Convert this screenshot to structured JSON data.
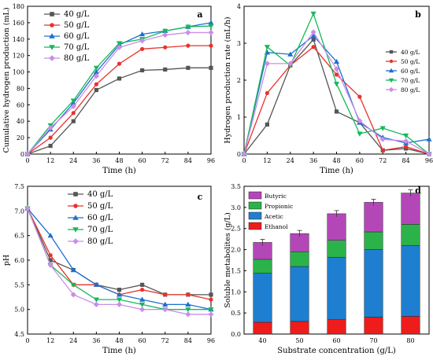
{
  "colors": {
    "c40": "#555555",
    "c50": "#e8332a",
    "c60": "#1f6fd1",
    "c70": "#16b85a",
    "c80": "#c98ee8",
    "butyric": "#b447b8",
    "propionic": "#2bb34a",
    "acetic": "#1e7fd0",
    "ethanol": "#ef1c1c"
  },
  "chart_data": [
    {
      "panel": "a",
      "type": "line",
      "xlabel": "Time (h)",
      "ylabel": "Cumulative hydrogen production (mL)",
      "xlim": [
        0,
        96
      ],
      "ylim": [
        0,
        180
      ],
      "xticks": [
        0,
        12,
        24,
        36,
        48,
        60,
        72,
        84,
        96
      ],
      "yticks": [
        0,
        20,
        40,
        60,
        80,
        100,
        120,
        140,
        160,
        180
      ],
      "x": [
        0,
        12,
        24,
        36,
        48,
        60,
        72,
        84,
        96
      ],
      "legend_position": "top-left",
      "series": [
        {
          "name": "40 g/L",
          "marker": "square",
          "color_key": "c40",
          "values": [
            0,
            10,
            40,
            78,
            92,
            102,
            103,
            105,
            105
          ]
        },
        {
          "name": "50 g/L",
          "marker": "circle",
          "color_key": "c50",
          "values": [
            0,
            20,
            50,
            85,
            110,
            128,
            130,
            132,
            132
          ]
        },
        {
          "name": "60 g/L",
          "marker": "triangle-up",
          "color_key": "c60",
          "values": [
            0,
            30,
            62,
            100,
            133,
            146,
            150,
            155,
            160
          ]
        },
        {
          "name": "70 g/L",
          "marker": "triangle-down",
          "color_key": "c70",
          "values": [
            0,
            35,
            65,
            105,
            135,
            140,
            150,
            155,
            156
          ]
        },
        {
          "name": "80 g/L",
          "marker": "diamond",
          "color_key": "c80",
          "values": [
            0,
            32,
            58,
            95,
            130,
            138,
            145,
            148,
            148
          ]
        }
      ]
    },
    {
      "panel": "b",
      "type": "line",
      "xlabel": "Time (h)",
      "ylabel": "Hydrogen production rate (mL/h)",
      "xlim": [
        0,
        96
      ],
      "ylim": [
        0,
        4
      ],
      "xticks": [
        0,
        12,
        24,
        36,
        48,
        60,
        72,
        84,
        96
      ],
      "yticks": [
        0,
        1,
        2,
        3,
        4
      ],
      "x": [
        0,
        12,
        24,
        36,
        48,
        60,
        72,
        84,
        96
      ],
      "legend_position": "right",
      "series": [
        {
          "name": "40 g/L",
          "marker": "square",
          "color_key": "c40",
          "values": [
            0,
            0.8,
            2.4,
            3.1,
            1.15,
            0.85,
            0.1,
            0.15,
            0
          ]
        },
        {
          "name": "50 g/L",
          "marker": "circle",
          "color_key": "c50",
          "values": [
            0,
            1.65,
            2.4,
            2.9,
            2.15,
            1.55,
            0.1,
            0.2,
            0
          ]
        },
        {
          "name": "60 g/L",
          "marker": "triangle-up",
          "color_key": "c60",
          "values": [
            0,
            2.75,
            2.7,
            3.2,
            2.5,
            0.85,
            0.45,
            0.3,
            0.4
          ]
        },
        {
          "name": "70 g/L",
          "marker": "triangle-down",
          "color_key": "c70",
          "values": [
            0,
            2.9,
            2.4,
            3.8,
            1.9,
            0.55,
            0.7,
            0.5,
            0
          ]
        },
        {
          "name": "80 g/L",
          "marker": "diamond",
          "color_key": "c80",
          "values": [
            0,
            2.45,
            2.45,
            3.3,
            2.3,
            0.9,
            0.4,
            0.35,
            0
          ]
        }
      ]
    },
    {
      "panel": "c",
      "type": "line",
      "xlabel": "Time (h)",
      "ylabel": "pH",
      "xlim": [
        0,
        96
      ],
      "ylim": [
        4.5,
        7.5
      ],
      "xticks": [
        0,
        12,
        24,
        36,
        48,
        60,
        72,
        84,
        96
      ],
      "yticks": [
        4.5,
        5.0,
        5.5,
        6.0,
        6.5,
        7.0,
        7.5
      ],
      "x": [
        0,
        12,
        24,
        36,
        48,
        60,
        72,
        84,
        96
      ],
      "legend_position": "top-right",
      "series": [
        {
          "name": "40 g/L",
          "marker": "square",
          "color_key": "c40",
          "values": [
            7.05,
            6.0,
            5.8,
            5.5,
            5.4,
            5.5,
            5.3,
            5.3,
            5.3
          ]
        },
        {
          "name": "50 g/L",
          "marker": "circle",
          "color_key": "c50",
          "values": [
            7.05,
            6.1,
            5.5,
            5.5,
            5.3,
            5.4,
            5.3,
            5.3,
            5.2
          ]
        },
        {
          "name": "60 g/L",
          "marker": "triangle-up",
          "color_key": "c60",
          "values": [
            7.05,
            6.5,
            5.8,
            5.5,
            5.3,
            5.2,
            5.1,
            5.1,
            5.0
          ]
        },
        {
          "name": "70 g/L",
          "marker": "triangle-down",
          "color_key": "c70",
          "values": [
            7.05,
            5.9,
            5.5,
            5.2,
            5.2,
            5.1,
            5.0,
            5.0,
            5.0
          ]
        },
        {
          "name": "80 g/L",
          "marker": "diamond",
          "color_key": "c80",
          "values": [
            7.05,
            5.9,
            5.3,
            5.1,
            5.1,
            5.0,
            5.0,
            4.9,
            4.9
          ]
        }
      ]
    },
    {
      "panel": "d",
      "type": "bar",
      "stacked": true,
      "xlabel": "Substrate concentration (g/L)",
      "ylabel": "Soluble metabolites (g/L)",
      "ylim": [
        0,
        3.5
      ],
      "yticks": [
        0.0,
        0.5,
        1.0,
        1.5,
        2.0,
        2.5,
        3.0,
        3.5
      ],
      "categories": [
        "40",
        "50",
        "60",
        "70",
        "80"
      ],
      "legend_position": "top-left",
      "series": [
        {
          "name": "Ethanol",
          "color_key": "ethanol",
          "values": [
            0.28,
            0.3,
            0.34,
            0.4,
            0.42
          ]
        },
        {
          "name": "Acetic",
          "color_key": "acetic",
          "values": [
            1.16,
            1.3,
            1.48,
            1.6,
            1.68
          ]
        },
        {
          "name": "Propionic",
          "color_key": "propionic",
          "values": [
            0.33,
            0.35,
            0.4,
            0.42,
            0.5
          ]
        },
        {
          "name": "Butyric",
          "color_key": "butyric",
          "values": [
            0.4,
            0.43,
            0.63,
            0.7,
            0.74
          ]
        }
      ]
    }
  ]
}
